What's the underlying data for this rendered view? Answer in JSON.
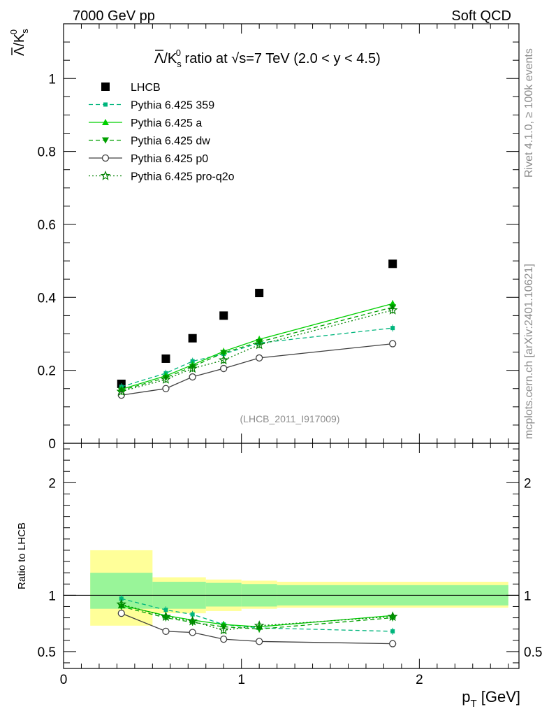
{
  "header": {
    "left": "7000 GeV pp",
    "right": "Soft QCD"
  },
  "side_text": {
    "rivet": "Rivet 4.1.0, ≥ 100k events",
    "mcplots": "mcplots.cern.ch [arXiv:2401.10621]"
  },
  "watermark": "(LHCB_2011_I917009)",
  "main_title": {
    "prefix": "/K",
    "sub": "s",
    "sup": "0",
    "rest": " ratio at √s=7 TeV (2.0 < y < 4.5)",
    "lambda_bar": "Λ"
  },
  "y_main_label": {
    "lambda_bar": "Λ",
    "k": "/K",
    "sub": "s",
    "sup": "0"
  },
  "ratio_ylabel": "Ratio to LHCB",
  "xlabel": {
    "p": "p",
    "sub": "T",
    "unit": " [GeV]"
  },
  "colors": {
    "lhcb": "#000000",
    "p359": "#00b57c",
    "pa": "#00d000",
    "pdw": "#00a000",
    "pp0": "#404040",
    "pq2o": "#008000",
    "band_inner": "#99f599",
    "band_outer": "#ffff99"
  },
  "chart_data": [
    {
      "type": "line",
      "title": "Λ̅/K⁰s ratio at √s=7 TeV (2.0 < y < 4.5)",
      "xlabel": "pT [GeV]",
      "ylabel": "Λ̅/K⁰s",
      "xlim": [
        0,
        2.56
      ],
      "ylim": [
        0,
        1.15
      ],
      "x_ticks": [
        0,
        1,
        2
      ],
      "y_ticks": [
        0,
        0.2,
        0.4,
        0.6,
        0.8,
        1
      ],
      "y_tick_labels": [
        "0",
        "0.2",
        "0.4",
        "0.6",
        "0.8",
        "1"
      ],
      "legend_position": "top-left",
      "x": [
        0.325,
        0.575,
        0.725,
        0.9,
        1.1,
        1.85
      ],
      "series": [
        {
          "key": "lhcb",
          "name": "LHCB",
          "values": [
            0.163,
            0.232,
            0.288,
            0.35,
            0.412,
            0.492
          ]
        },
        {
          "key": "p359",
          "name": "Pythia 6.425 359",
          "values": [
            0.155,
            0.192,
            0.225,
            0.245,
            0.275,
            0.316
          ]
        },
        {
          "key": "pa",
          "name": "Pythia 6.425 a",
          "values": [
            0.148,
            0.185,
            0.215,
            0.252,
            0.285,
            0.383
          ]
        },
        {
          "key": "pdw",
          "name": "Pythia 6.425 dw",
          "values": [
            0.145,
            0.18,
            0.21,
            0.248,
            0.278,
            0.373
          ]
        },
        {
          "key": "pp0",
          "name": "Pythia 6.425 p0",
          "values": [
            0.132,
            0.15,
            0.182,
            0.205,
            0.234,
            0.273
          ]
        },
        {
          "key": "pq2o",
          "name": "Pythia 6.425 pro-q2o",
          "values": [
            0.142,
            0.175,
            0.205,
            0.228,
            0.27,
            0.365
          ]
        }
      ]
    },
    {
      "type": "line",
      "title": "Ratio to LHCB",
      "xlabel": "pT [GeV]",
      "ylabel": "Ratio to LHCB",
      "xlim": [
        0,
        2.56
      ],
      "ylim": [
        0.35,
        2.35
      ],
      "x_ticks": [
        0,
        1,
        2
      ],
      "y_ticks": [
        0.5,
        1,
        2
      ],
      "y_tick_labels": [
        "0.5",
        "1",
        "2"
      ],
      "bands": [
        {
          "x0": 0.15,
          "x1": 0.5,
          "inner": [
            0.88,
            1.2
          ],
          "outer": [
            0.73,
            1.4
          ]
        },
        {
          "x0": 0.5,
          "x1": 0.8,
          "inner": [
            0.88,
            1.12
          ],
          "outer": [
            0.84,
            1.16
          ]
        },
        {
          "x0": 0.8,
          "x1": 1.0,
          "inner": [
            0.9,
            1.11
          ],
          "outer": [
            0.86,
            1.14
          ]
        },
        {
          "x0": 1.0,
          "x1": 1.2,
          "inner": [
            0.9,
            1.1
          ],
          "outer": [
            0.88,
            1.13
          ]
        },
        {
          "x0": 1.2,
          "x1": 2.5,
          "inner": [
            0.91,
            1.09
          ],
          "outer": [
            0.89,
            1.12
          ]
        }
      ],
      "x": [
        0.325,
        0.575,
        0.725,
        0.9,
        1.1,
        1.85
      ],
      "series": [
        {
          "key": "p359",
          "name": "Pythia 6.425 359",
          "values": [
            0.97,
            0.87,
            0.83,
            0.74,
            0.71,
            0.68
          ]
        },
        {
          "key": "pa",
          "name": "Pythia 6.425 a",
          "values": [
            0.91,
            0.82,
            0.78,
            0.74,
            0.72,
            0.82
          ]
        },
        {
          "key": "pdw",
          "name": "Pythia 6.425 dw",
          "values": [
            0.9,
            0.8,
            0.76,
            0.72,
            0.7,
            0.8
          ]
        },
        {
          "key": "pp0",
          "name": "Pythia 6.425 p0",
          "values": [
            0.84,
            0.68,
            0.67,
            0.61,
            0.59,
            0.57
          ]
        },
        {
          "key": "pq2o",
          "name": "Pythia 6.425 pro-q2o",
          "values": [
            0.92,
            0.81,
            0.77,
            0.69,
            0.73,
            0.81
          ]
        }
      ]
    }
  ]
}
